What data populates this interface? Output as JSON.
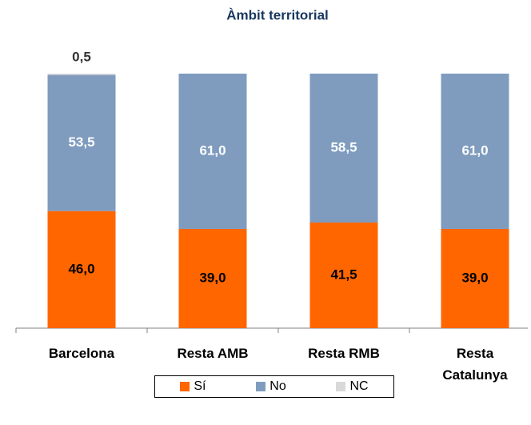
{
  "chart_data": {
    "type": "stacked_bar",
    "title": "Àmbit territorial",
    "categories": [
      "Barcelona",
      "Resta AMB",
      "Resta RMB",
      "Resta Catalunya"
    ],
    "series": [
      {
        "name": "Sí",
        "color": "#ff6600",
        "values": [
          46.0,
          39.0,
          41.5,
          39.0
        ],
        "value_labels": [
          "46,0",
          "39,0",
          "41,5",
          "39,0"
        ]
      },
      {
        "name": "No",
        "color": "#7f9cbf",
        "values": [
          53.5,
          61.0,
          58.5,
          61.0
        ],
        "value_labels": [
          "53,5",
          "61,0",
          "58,5",
          "61,0"
        ]
      },
      {
        "name": "NC",
        "color": "#d9d9d9",
        "values": [
          0.5,
          0,
          0,
          0
        ],
        "value_labels": [
          "0,5",
          null,
          null,
          null
        ]
      }
    ],
    "ylim": [
      0,
      100
    ],
    "legend": "bottom"
  }
}
